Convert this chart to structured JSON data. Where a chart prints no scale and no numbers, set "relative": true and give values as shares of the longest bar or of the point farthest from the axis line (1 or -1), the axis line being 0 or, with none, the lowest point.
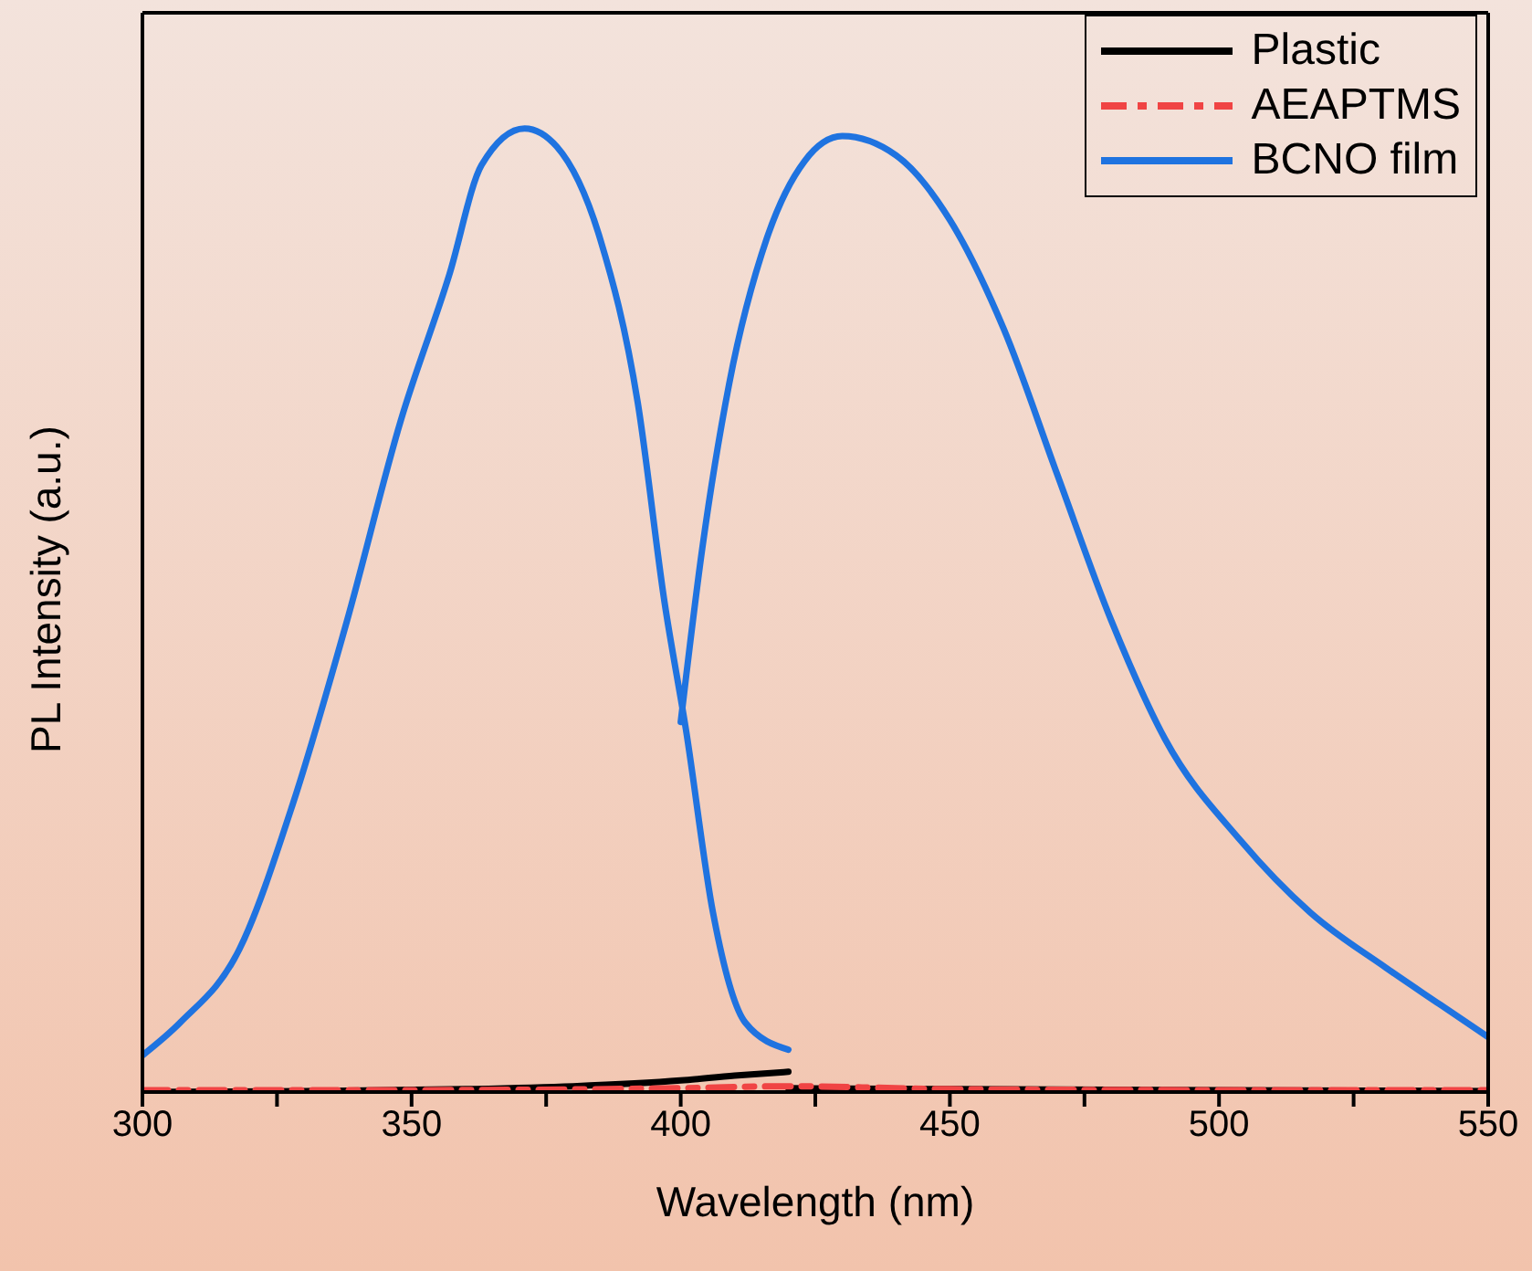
{
  "chart_data": {
    "type": "line",
    "xlabel": "Wavelength (nm)",
    "ylabel": "PL Intensity (a.u.)",
    "relative": true,
    "xlim": [
      300,
      550
    ],
    "xticks": [
      300,
      {
        "value": 325,
        "label": null
      },
      350,
      {
        "value": 375,
        "label": null
      },
      400,
      {
        "value": 425,
        "label": null
      },
      450,
      {
        "value": 475,
        "label": null
      },
      500,
      {
        "value": 525,
        "label": null
      },
      550
    ],
    "legend": "top right",
    "marker": "none",
    "series": [
      {
        "name": "Plastic",
        "color": "#000000",
        "line_style": "solid",
        "x": [
          300,
          330,
          360,
          380,
          400,
          410,
          420,
          null,
          420,
          450,
          500,
          550
        ],
        "values": [
          0,
          0.001,
          0.003,
          0.006,
          0.012,
          0.017,
          0.021,
          null,
          0.004,
          0.003,
          0.002,
          0.001
        ]
      },
      {
        "name": "AEAPTMS",
        "color": "#f04444",
        "line_style": "dashdot",
        "x": [
          300,
          350,
          400,
          420,
          450,
          500,
          550
        ],
        "values": [
          0.002,
          0.002,
          0.004,
          0.006,
          0.003,
          0.002,
          0.002
        ]
      },
      {
        "name": "BCNO film",
        "color": "#1f73e0",
        "line_style": "solid",
        "x": [
          300,
          307,
          318,
          328,
          338,
          348,
          357,
          363,
          371,
          377,
          385,
          392,
          397,
          401,
          406,
          412,
          420,
          null,
          400,
          404,
          409,
          416,
          423,
          430,
          440,
          450,
          460,
          470,
          480,
          490,
          504,
          517,
          531,
          541,
          550
        ],
        "values": [
          0.038,
          0.072,
          0.148,
          0.3,
          0.489,
          0.697,
          0.848,
          0.962,
          1,
          0.981,
          0.886,
          0.716,
          0.508,
          0.375,
          0.186,
          0.072,
          0.044,
          null,
          0.384,
          0.564,
          0.735,
          0.886,
          0.966,
          0.992,
          0.972,
          0.905,
          0.792,
          0.64,
          0.489,
          0.366,
          0.261,
          0.186,
          0.129,
          0.091,
          0.057
        ]
      }
    ]
  }
}
